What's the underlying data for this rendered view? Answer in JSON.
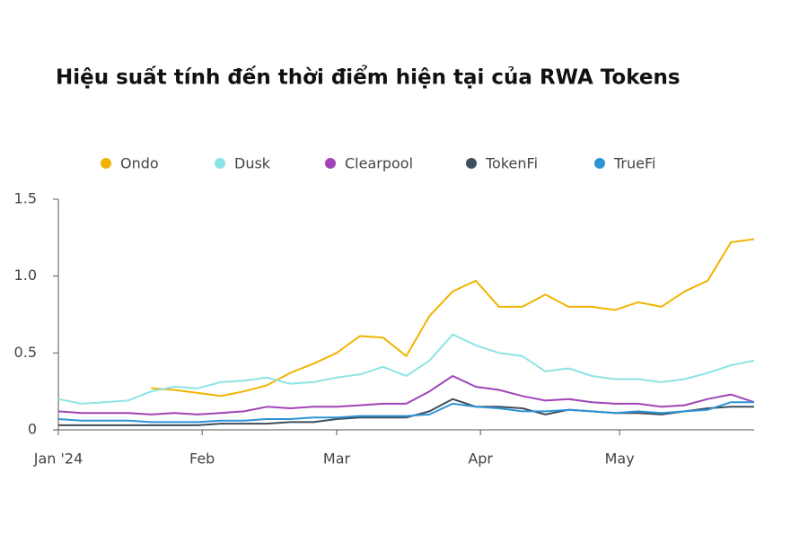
{
  "chart_data": {
    "type": "line",
    "title": "Hiệu suất tính đến thời điểm hiện tại của RWA Tokens",
    "x": [
      0,
      5,
      10,
      15,
      20,
      25,
      30,
      35,
      40,
      45,
      50,
      55,
      60,
      65,
      70,
      75,
      80,
      85,
      90,
      95,
      100,
      105,
      110,
      115,
      120,
      125,
      130,
      135,
      140,
      145,
      150
    ],
    "xlim": [
      0,
      150
    ],
    "xticks": [
      {
        "value": 0,
        "label": "Jan '24"
      },
      {
        "value": 31,
        "label": "Feb"
      },
      {
        "value": 60,
        "label": "Mar"
      },
      {
        "value": 91,
        "label": "Apr"
      },
      {
        "value": 121,
        "label": "May"
      }
    ],
    "ylim": [
      0,
      1.5
    ],
    "yticks": [
      0,
      0.5,
      {
        "value": 1,
        "label": "1.0"
      },
      1.5
    ],
    "grid": false,
    "legend": "top",
    "series": [
      {
        "name": "Ondo",
        "color": "#f0b400",
        "values": [
          null,
          null,
          null,
          null,
          0.27,
          0.26,
          0.24,
          0.22,
          0.25,
          0.29,
          0.37,
          0.43,
          0.5,
          0.61,
          0.6,
          0.48,
          0.74,
          0.9,
          0.97,
          0.8,
          0.8,
          0.88,
          0.8,
          0.8,
          0.78,
          0.83,
          0.8,
          0.9,
          0.97,
          1.22,
          1.24
        ]
      },
      {
        "name": "Dusk",
        "color": "#8de4e4",
        "values": [
          0.2,
          0.17,
          0.18,
          0.19,
          0.25,
          0.28,
          0.27,
          0.31,
          0.32,
          0.34,
          0.3,
          0.31,
          0.34,
          0.36,
          0.41,
          0.35,
          0.45,
          0.62,
          0.55,
          0.5,
          0.48,
          0.38,
          0.4,
          0.35,
          0.33,
          0.33,
          0.31,
          0.33,
          0.37,
          0.42,
          0.45
        ]
      },
      {
        "name": "Clearpool",
        "color": "#a044b8",
        "values": [
          0.12,
          0.11,
          0.11,
          0.11,
          0.1,
          0.11,
          0.1,
          0.11,
          0.12,
          0.15,
          0.14,
          0.15,
          0.15,
          0.16,
          0.17,
          0.17,
          0.25,
          0.35,
          0.28,
          0.26,
          0.22,
          0.19,
          0.2,
          0.18,
          0.17,
          0.17,
          0.15,
          0.16,
          0.2,
          0.23,
          0.18
        ]
      },
      {
        "name": "TokenFi",
        "color": "#3d4f5c",
        "values": [
          0.03,
          0.03,
          0.03,
          0.03,
          0.03,
          0.03,
          0.03,
          0.04,
          0.04,
          0.04,
          0.05,
          0.05,
          0.07,
          0.08,
          0.08,
          0.08,
          0.12,
          0.2,
          0.15,
          0.15,
          0.14,
          0.1,
          0.13,
          0.12,
          0.11,
          0.11,
          0.1,
          0.12,
          0.14,
          0.15,
          0.15
        ]
      },
      {
        "name": "TrueFi",
        "color": "#2f93d6",
        "values": [
          0.07,
          0.06,
          0.06,
          0.06,
          0.05,
          0.05,
          0.05,
          0.06,
          0.06,
          0.07,
          0.07,
          0.08,
          0.08,
          0.09,
          0.09,
          0.09,
          0.1,
          0.17,
          0.15,
          0.14,
          0.12,
          0.12,
          0.13,
          0.12,
          0.11,
          0.12,
          0.11,
          0.12,
          0.13,
          0.18,
          0.18
        ]
      }
    ]
  }
}
